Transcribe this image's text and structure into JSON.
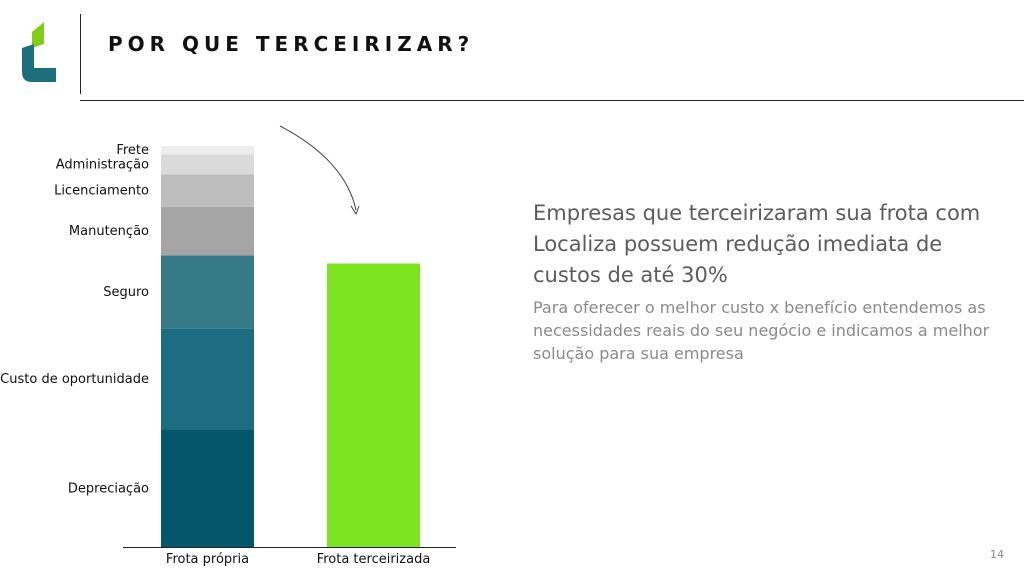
{
  "header": {
    "title": "POR QUE TERCEIRIZAR?"
  },
  "colors": {
    "logo_green": "#82CC1E",
    "logo_teal": "#1E6F7E",
    "outsourced_bar": "#7DE21F"
  },
  "headline": "Empresas que terceirizaram sua frota com Localiza possuem redução imediata de custos de até 30%",
  "subtext": "Para oferecer o melhor custo x benefício entendemos as necessidades reais do seu negócio e indicamos a melhor solução para sua empresa",
  "page_number": "14",
  "chart_data": {
    "type": "bar",
    "stacked": true,
    "categories": [
      "Frota própria",
      "Frota terceirizada"
    ],
    "series": [
      {
        "name": "Depreciação",
        "values": [
          29,
          0
        ],
        "color": "#04566B"
      },
      {
        "name": "Custo de oportunidade",
        "values": [
          25,
          0
        ],
        "color": "#1D6C82"
      },
      {
        "name": "Seguro",
        "values": [
          18,
          0
        ],
        "color": "#367A88"
      },
      {
        "name": "Manutenção",
        "values": [
          12,
          0
        ],
        "color": "#A5A5A5"
      },
      {
        "name": "Licenciamento",
        "values": [
          8,
          0
        ],
        "color": "#BDBDBD"
      },
      {
        "name": "Administração",
        "values": [
          5,
          0
        ],
        "color": "#DADADA"
      },
      {
        "name": "Frete",
        "values": [
          2,
          0
        ],
        "color": "#EDEDED"
      },
      {
        "name": "",
        "values": [
          0,
          70
        ],
        "color": "#7DE21F"
      }
    ],
    "total": [
      99,
      70
    ],
    "grid": false,
    "legend": "left-of-bar labels"
  }
}
